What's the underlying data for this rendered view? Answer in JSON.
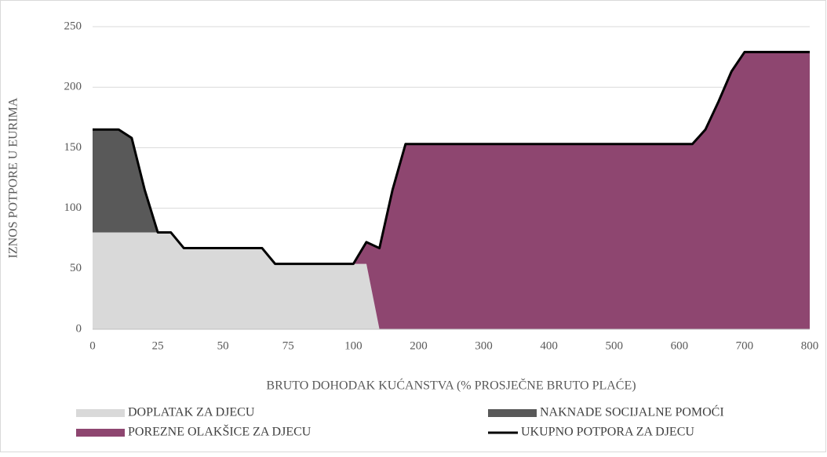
{
  "chart_data": {
    "type": "area",
    "xlabel": "BRUTO DOHODAK KUĆANSTVA (% PROSJEČNE BRUTO PLAĆE)",
    "ylabel": "IZNOS POTPORE U EURIMA",
    "categories": [
      "0",
      null,
      null,
      null,
      null,
      "25",
      null,
      null,
      null,
      null,
      "50",
      null,
      null,
      null,
      null,
      "75",
      null,
      null,
      null,
      null,
      "100",
      null,
      null,
      null,
      null,
      "200",
      null,
      null,
      null,
      null,
      "300",
      null,
      null,
      null,
      null,
      "400",
      null,
      null,
      null,
      null,
      "500",
      null,
      null,
      null,
      null,
      "600",
      null,
      null,
      null,
      null,
      "700",
      null,
      null,
      null,
      null,
      "800"
    ],
    "ylim": [
      0,
      250
    ],
    "yticks": [
      0,
      50,
      100,
      150,
      200,
      250
    ],
    "grid": true,
    "stacked": true,
    "legend": "bottom",
    "series": [
      {
        "name": "DOPLATAK ZA DJECU",
        "color": "#d9d9d9",
        "values": [
          80,
          80,
          80,
          80,
          80,
          80,
          80,
          67,
          67,
          67,
          67,
          67,
          67,
          67,
          54,
          54,
          54,
          54,
          54,
          54,
          54,
          54,
          0,
          0,
          0,
          0,
          0,
          0,
          0,
          0,
          0,
          0,
          0,
          0,
          0,
          0,
          0,
          0,
          0,
          0,
          0,
          0,
          0,
          0,
          0,
          0,
          0,
          0,
          0,
          0,
          0,
          0,
          0,
          0,
          0,
          0
        ]
      },
      {
        "name": "NAKNADE SOCIJALNE POMOĆI",
        "color": "#595959",
        "values": [
          85,
          85,
          85,
          78,
          35,
          0,
          0,
          0,
          0,
          0,
          0,
          0,
          0,
          0,
          0,
          0,
          0,
          0,
          0,
          0,
          0,
          0,
          0,
          0,
          0,
          0,
          0,
          0,
          0,
          0,
          0,
          0,
          0,
          0,
          0,
          0,
          0,
          0,
          0,
          0,
          0,
          0,
          0,
          0,
          0,
          0,
          0,
          0,
          0,
          0,
          0,
          0,
          0,
          0,
          0,
          0
        ]
      },
      {
        "name": "POREZNE OLAKŠICE ZA DJECU",
        "color": "#8e4670",
        "values": [
          0,
          0,
          0,
          0,
          0,
          0,
          0,
          0,
          0,
          0,
          0,
          0,
          0,
          0,
          0,
          0,
          0,
          0,
          0,
          0,
          0,
          18,
          67,
          115,
          153,
          153,
          153,
          153,
          153,
          153,
          153,
          153,
          153,
          153,
          153,
          153,
          153,
          153,
          153,
          153,
          153,
          153,
          153,
          153,
          153,
          153,
          153,
          165,
          188,
          213,
          229,
          229,
          229,
          229,
          229,
          229
        ]
      },
      {
        "name": "UKUPNO POTPORA ZA DJECU",
        "color": "#000000",
        "type": "line",
        "values": [
          165,
          165,
          165,
          158,
          115,
          80,
          80,
          67,
          67,
          67,
          67,
          67,
          67,
          67,
          54,
          54,
          54,
          54,
          54,
          54,
          54,
          72,
          67,
          115,
          153,
          153,
          153,
          153,
          153,
          153,
          153,
          153,
          153,
          153,
          153,
          153,
          153,
          153,
          153,
          153,
          153,
          153,
          153,
          153,
          153,
          153,
          153,
          165,
          188,
          213,
          229,
          229,
          229,
          229,
          229,
          229
        ]
      }
    ]
  }
}
